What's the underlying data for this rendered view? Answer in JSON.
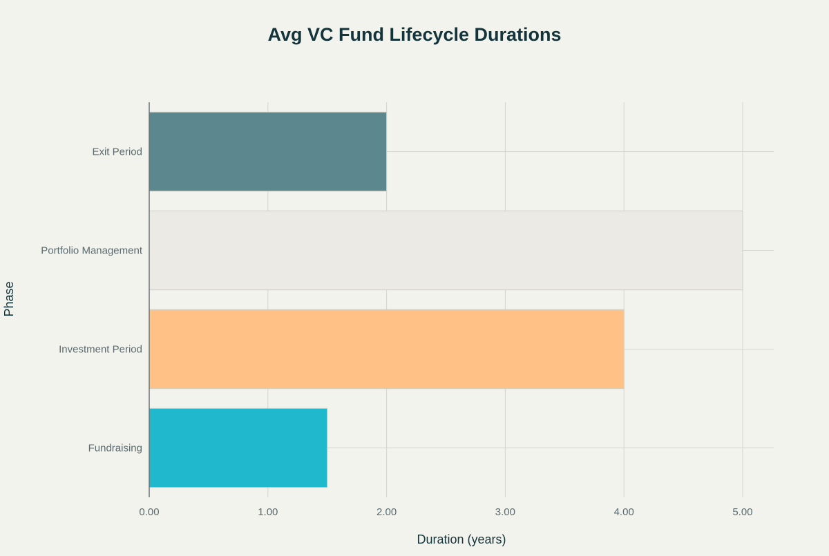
{
  "chart_data": {
    "type": "bar",
    "orientation": "horizontal",
    "title": "Avg VC Fund Lifecycle Durations",
    "xlabel": "Duration (years)",
    "ylabel": "Phase",
    "xlim": [
      0,
      5.25
    ],
    "x_ticks": [
      "0.00",
      "1.00",
      "2.00",
      "3.00",
      "4.00",
      "5.00"
    ],
    "categories": [
      "Fundraising",
      "Investment Period",
      "Portfolio Management",
      "Exit Period"
    ],
    "values": [
      1.5,
      4.0,
      5.0,
      2.0
    ],
    "colors": [
      "#1fb8cd",
      "#ffc185",
      "#eceae4",
      "#5d878f"
    ],
    "grid": true,
    "legend": "none"
  }
}
